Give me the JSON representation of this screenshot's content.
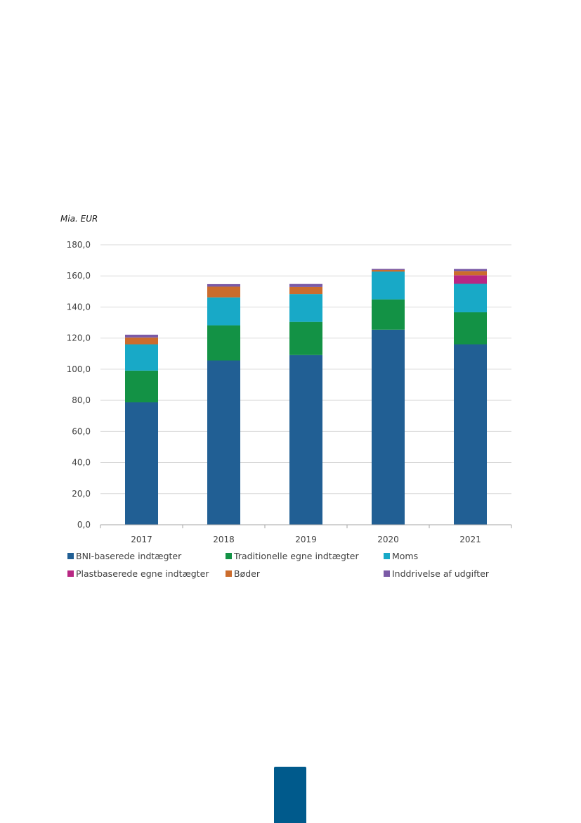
{
  "chart_data": {
    "type": "bar",
    "stacked": true,
    "title": "",
    "unit_label": "Mia. EUR",
    "categories": [
      "2017",
      "2018",
      "2019",
      "2020",
      "2021"
    ],
    "ylim": [
      0,
      180
    ],
    "y_ticks": [
      "0,0",
      "20,0",
      "40,0",
      "60,0",
      "80,0",
      "100,0",
      "120,0",
      "140,0",
      "160,0",
      "180,0"
    ],
    "grid": true,
    "legend_position": "bottom",
    "series": [
      {
        "name": "BNI-baserede indtægter",
        "color": "#215f94",
        "values": [
          78.7,
          105.6,
          109.1,
          125.4,
          116.0
        ]
      },
      {
        "name": "Traditionelle egne indtægter",
        "color": "#139245",
        "values": [
          20.4,
          22.6,
          21.3,
          19.5,
          20.6
        ]
      },
      {
        "name": "Moms",
        "color": "#18a9c7",
        "values": [
          16.9,
          18.0,
          17.9,
          17.9,
          18.3
        ]
      },
      {
        "name": "Plastbaserede egne indtægter",
        "color": "#b82783",
        "values": [
          0,
          0,
          0,
          0,
          5.5
        ]
      },
      {
        "name": "Bøder",
        "color": "#cb6c2d",
        "values": [
          4.4,
          6.9,
          4.6,
          1.0,
          2.7
        ]
      },
      {
        "name": "Inddrivelse af udgifter",
        "color": "#7b5aa6",
        "values": [
          1.8,
          1.6,
          1.9,
          0.8,
          1.4
        ]
      }
    ]
  }
}
